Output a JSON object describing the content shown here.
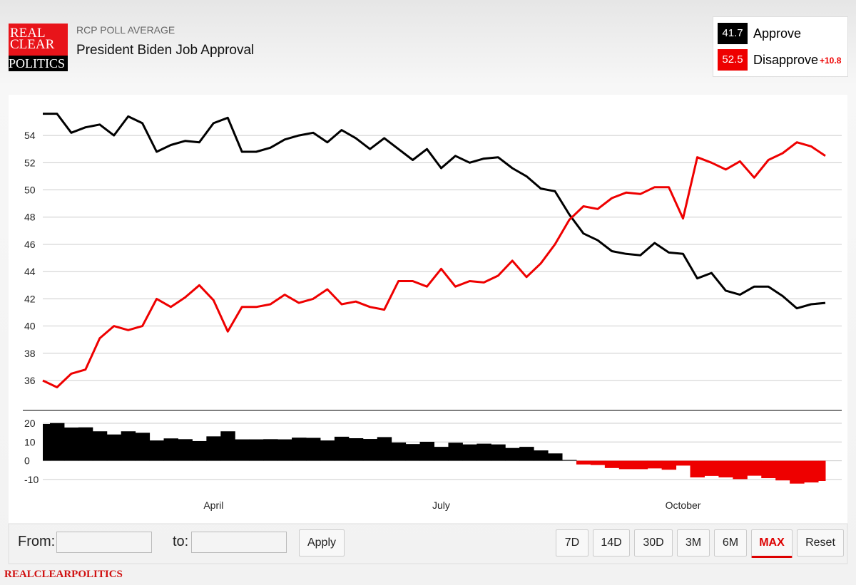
{
  "header": {
    "logo": [
      "REAL",
      "CLEAR",
      "POLITICS"
    ],
    "kicker": "RCP POLL AVERAGE",
    "title": "President Biden Job Approval"
  },
  "summary": {
    "items": [
      {
        "value": 41.7,
        "label": "Approve",
        "color": "#000000"
      },
      {
        "value": 52.5,
        "label": "Disapprove",
        "color": "#ee0000"
      }
    ],
    "spread": "+10.8"
  },
  "chart_data": [
    {
      "type": "line",
      "categories": [
        null,
        null,
        null,
        null,
        null,
        null,
        null,
        null,
        null,
        null,
        null,
        null,
        "April",
        null,
        null,
        null,
        null,
        null,
        null,
        null,
        null,
        null,
        null,
        null,
        null,
        null,
        null,
        null,
        "July",
        null,
        null,
        null,
        null,
        null,
        null,
        null,
        null,
        null,
        null,
        null,
        null,
        null,
        null,
        null,
        null,
        "October",
        null,
        null,
        null,
        null,
        null,
        null,
        null,
        null,
        null,
        null
      ],
      "series": [
        {
          "name": "Approve",
          "color": "#000000",
          "values": [
            55.6,
            55.6,
            54.2,
            54.6,
            54.8,
            54.0,
            55.4,
            54.9,
            52.8,
            53.3,
            53.6,
            53.5,
            54.9,
            55.3,
            52.8,
            52.8,
            53.1,
            53.7,
            54.0,
            54.2,
            53.5,
            54.4,
            53.8,
            53.0,
            53.8,
            53.0,
            52.2,
            53.0,
            51.6,
            52.5,
            52.0,
            52.3,
            52.4,
            51.6,
            51.0,
            50.1,
            49.9,
            48.2,
            46.8,
            46.3,
            45.5,
            45.3,
            45.2,
            46.1,
            45.4,
            45.3,
            43.5,
            43.9,
            42.6,
            42.3,
            42.9,
            42.9,
            42.2,
            41.3,
            41.6,
            41.7
          ]
        },
        {
          "name": "Disapprove",
          "color": "#ee0000",
          "values": [
            36.0,
            35.5,
            36.5,
            36.8,
            39.1,
            40.0,
            39.7,
            40.0,
            42.0,
            41.4,
            42.1,
            43.0,
            41.9,
            39.6,
            41.4,
            41.4,
            41.6,
            42.3,
            41.7,
            42.0,
            42.7,
            41.6,
            41.8,
            41.4,
            41.2,
            43.3,
            43.3,
            42.9,
            44.2,
            42.9,
            43.3,
            43.2,
            43.7,
            44.8,
            43.6,
            44.6,
            46.0,
            47.8,
            48.8,
            48.6,
            49.4,
            49.8,
            49.7,
            50.2,
            50.2,
            47.9,
            52.4,
            52.0,
            51.5,
            52.1,
            50.9,
            52.2,
            52.7,
            53.5,
            53.2,
            52.5
          ]
        }
      ],
      "ylim": [
        33.8,
        56.1
      ],
      "yticks": [
        36,
        38,
        40,
        42,
        44,
        46,
        48,
        50,
        52,
        54
      ],
      "grid": true
    },
    {
      "type": "spread",
      "values": [
        19.6,
        20.1,
        17.7,
        17.8,
        15.7,
        14.0,
        15.7,
        14.9,
        10.8,
        11.9,
        11.5,
        10.5,
        13.0,
        15.7,
        11.4,
        11.4,
        11.5,
        11.4,
        12.3,
        12.2,
        10.8,
        12.8,
        12.0,
        11.6,
        12.6,
        9.7,
        8.9,
        10.1,
        7.4,
        9.6,
        8.7,
        9.1,
        8.7,
        6.8,
        7.4,
        5.5,
        3.9,
        0.4,
        -2.0,
        -2.3,
        -3.9,
        -4.5,
        -4.5,
        -4.1,
        -4.8,
        -2.6,
        -8.9,
        -8.1,
        -8.9,
        -9.8,
        -8.0,
        -9.3,
        -10.5,
        -12.2,
        -11.6,
        -10.8
      ],
      "positive_color": "#000000",
      "negative_color": "#ee0000",
      "ylim": [
        -16.5,
        25.3
      ],
      "yticks": [
        -10,
        0,
        10,
        20
      ],
      "grid": true
    }
  ],
  "controls": {
    "from": "From:",
    "to": "to:",
    "apply": "Apply",
    "ranges": [
      "7D",
      "14D",
      "30D",
      "3M",
      "6M",
      "MAX",
      "Reset"
    ],
    "active": "MAX"
  },
  "footer": "REALCLEARPOLITICS"
}
